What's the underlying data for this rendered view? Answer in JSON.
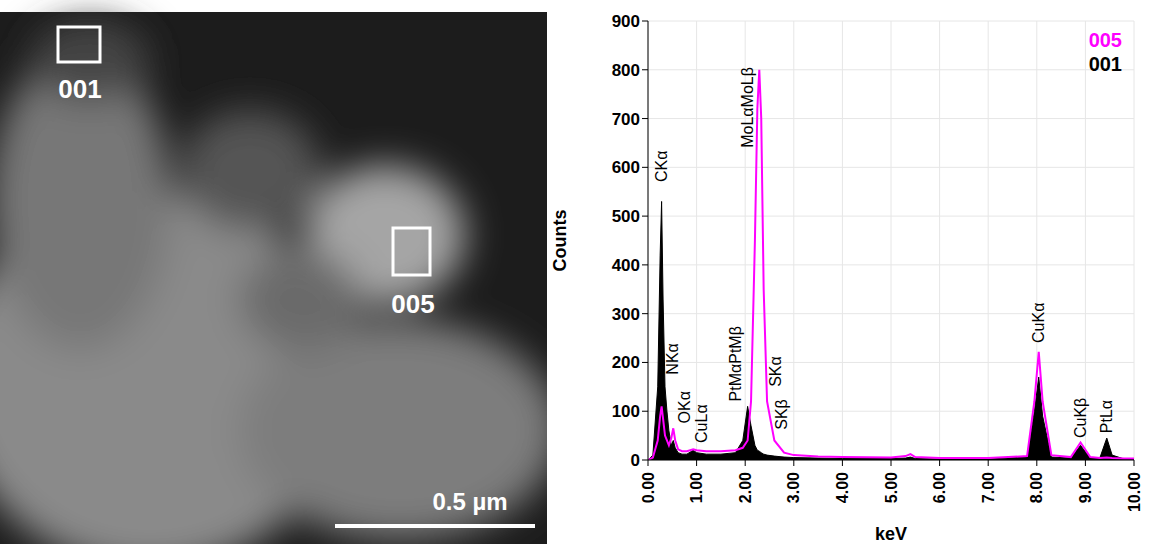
{
  "image": {
    "regions": [
      "001",
      "005"
    ],
    "scale_bar": "0.5 µm"
  },
  "chart_data": {
    "type": "line",
    "x_label": "keV",
    "y_label": "Counts",
    "xlim": [
      0,
      10
    ],
    "xticks": [
      {
        "value": 0,
        "label": "0.00"
      },
      {
        "value": 1,
        "label": "1.00"
      },
      {
        "value": 2,
        "label": "2.00"
      },
      {
        "value": 3,
        "label": "3.00"
      },
      {
        "value": 4,
        "label": "4.00"
      },
      {
        "value": 5,
        "label": "5.00"
      },
      {
        "value": 6,
        "label": "6.00"
      },
      {
        "value": 7,
        "label": "7.00"
      },
      {
        "value": 8,
        "label": "8.00"
      },
      {
        "value": 9,
        "label": "9.00"
      },
      {
        "value": 10,
        "label": "10.00"
      }
    ],
    "ylim": [
      0,
      900
    ],
    "yticks": [
      0,
      100,
      200,
      300,
      400,
      500,
      600,
      700,
      800,
      900
    ],
    "grid": true,
    "legend": "top right",
    "x": [
      0,
      0.1,
      0.2,
      0.25,
      0.28,
      0.31,
      0.35,
      0.39,
      0.43,
      0.48,
      0.52,
      0.56,
      0.62,
      0.7,
      0.8,
      0.93,
      1.0,
      1.2,
      1.5,
      1.8,
      1.95,
      2.05,
      2.12,
      2.2,
      2.25,
      2.29,
      2.33,
      2.38,
      2.45,
      2.6,
      2.8,
      3.0,
      3.5,
      4.0,
      5.0,
      5.3,
      5.4,
      5.5,
      6.0,
      7.0,
      7.8,
      7.95,
      8.04,
      8.12,
      8.3,
      8.7,
      8.9,
      9.1,
      9.3,
      9.44,
      9.55,
      9.8,
      10.0
    ],
    "series": [
      {
        "name": "005",
        "color": "#ff00ff",
        "type": "line",
        "values": [
          0,
          5,
          40,
          90,
          110,
          85,
          50,
          40,
          30,
          45,
          65,
          40,
          22,
          18,
          18,
          22,
          20,
          18,
          18,
          20,
          25,
          40,
          120,
          450,
          720,
          800,
          700,
          350,
          120,
          40,
          15,
          10,
          7,
          6,
          5,
          8,
          12,
          6,
          4,
          4,
          8,
          120,
          222,
          120,
          10,
          6,
          36,
          6,
          4,
          5,
          4,
          3,
          3
        ]
      },
      {
        "name": "001",
        "color": "#000000",
        "type": "area",
        "values": [
          0,
          10,
          150,
          420,
          530,
          330,
          150,
          100,
          60,
          30,
          40,
          25,
          15,
          12,
          12,
          20,
          15,
          12,
          12,
          15,
          40,
          110,
          70,
          30,
          20,
          18,
          15,
          12,
          10,
          8,
          6,
          5,
          4,
          3,
          3,
          4,
          6,
          3,
          2,
          2,
          6,
          100,
          170,
          90,
          6,
          4,
          30,
          4,
          5,
          45,
          10,
          2,
          2
        ]
      }
    ],
    "annotations": [
      {
        "text": "CKα",
        "x": 0.28,
        "y": 570
      },
      {
        "text": "NKα",
        "x": 0.5,
        "y": 175
      },
      {
        "text": "OKα",
        "x": 0.75,
        "y": 75
      },
      {
        "text": "CuLα",
        "x": 1.1,
        "y": 35
      },
      {
        "text": "PtMαPtMβ",
        "x": 1.8,
        "y": 120
      },
      {
        "text": "MoLαMoLβ",
        "x": 2.05,
        "y": 640
      },
      {
        "text": "SKα",
        "x": 2.62,
        "y": 150
      },
      {
        "text": "SKβ",
        "x": 2.75,
        "y": 62
      },
      {
        "text": "CuKα",
        "x": 8.04,
        "y": 240
      },
      {
        "text": "CuKβ",
        "x": 8.9,
        "y": 45
      },
      {
        "text": "PtLα",
        "x": 9.44,
        "y": 55
      }
    ]
  }
}
